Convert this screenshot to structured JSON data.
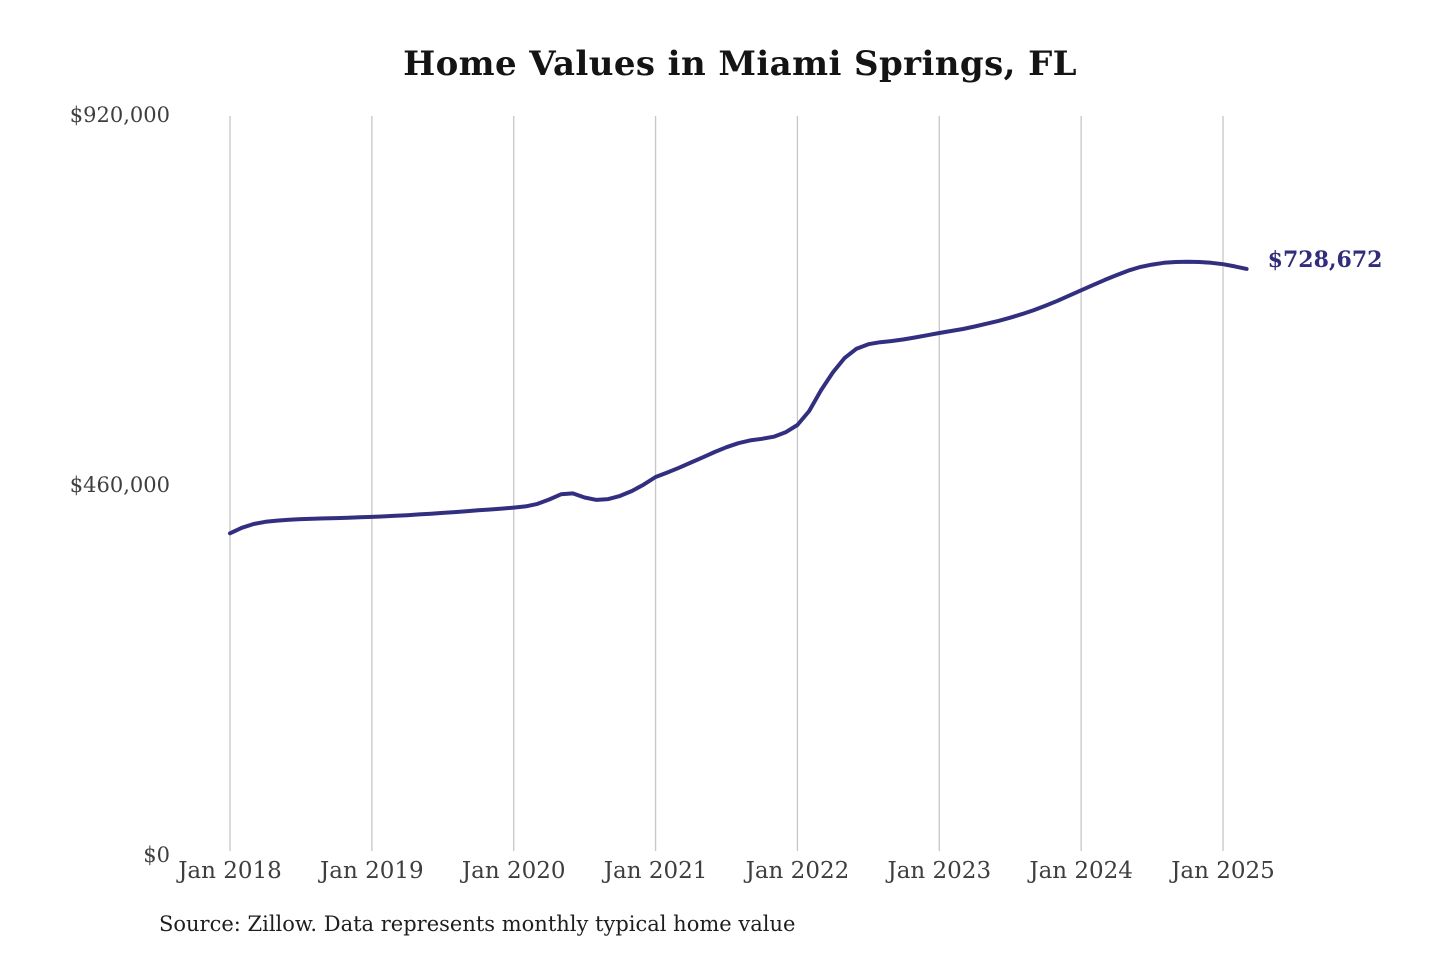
{
  "header": {
    "title": "Home Values in Miami Springs, FL"
  },
  "footer": {
    "source": "Source: Zillow. Data represents monthly typical home value"
  },
  "colors": {
    "line": "#332f80",
    "end_label": "#312d7a",
    "gridline": "#c7c7c7",
    "tick_text": "#3e3e3e"
  },
  "chart_data": {
    "type": "line",
    "title": "Home Values in Miami Springs, FL",
    "xlabel": "",
    "ylabel": "",
    "ylim": [
      0,
      920000
    ],
    "grid": "vertical-only",
    "legend": "none",
    "line_color": "#332f80",
    "end_label": "$728,672",
    "end_value": 728672,
    "y_ticks": [
      {
        "label": "$0",
        "value": 0
      },
      {
        "label": "$460,000",
        "value": 460000
      },
      {
        "label": "$920,000",
        "value": 920000
      }
    ],
    "x_tick_labels": [
      "Jan 2018",
      "Jan 2019",
      "Jan 2020",
      "Jan 2021",
      "Jan 2022",
      "Jan 2023",
      "Jan 2024",
      "Jan 2025"
    ],
    "months": [
      "2018-01",
      "2018-02",
      "2018-03",
      "2018-04",
      "2018-05",
      "2018-06",
      "2018-07",
      "2018-08",
      "2018-09",
      "2018-10",
      "2018-11",
      "2018-12",
      "2019-01",
      "2019-02",
      "2019-03",
      "2019-04",
      "2019-05",
      "2019-06",
      "2019-07",
      "2019-08",
      "2019-09",
      "2019-10",
      "2019-11",
      "2019-12",
      "2020-01",
      "2020-02",
      "2020-03",
      "2020-04",
      "2020-05",
      "2020-06",
      "2020-07",
      "2020-08",
      "2020-09",
      "2020-10",
      "2020-11",
      "2020-12",
      "2021-01",
      "2021-02",
      "2021-03",
      "2021-04",
      "2021-05",
      "2021-06",
      "2021-07",
      "2021-08",
      "2021-09",
      "2021-10",
      "2021-11",
      "2021-12",
      "2022-01",
      "2022-02",
      "2022-03",
      "2022-04",
      "2022-05",
      "2022-06",
      "2022-07",
      "2022-08",
      "2022-09",
      "2022-10",
      "2022-11",
      "2022-12",
      "2023-01",
      "2023-02",
      "2023-03",
      "2023-04",
      "2023-05",
      "2023-06",
      "2023-07",
      "2023-08",
      "2023-09",
      "2023-10",
      "2023-11",
      "2023-12",
      "2024-01",
      "2024-02",
      "2024-03",
      "2024-04",
      "2024-05",
      "2024-06",
      "2024-07",
      "2024-08",
      "2024-09",
      "2024-10",
      "2024-11",
      "2024-12",
      "2025-01",
      "2025-02",
      "2025-03"
    ],
    "values": [
      400000,
      406800,
      411500,
      414200,
      415800,
      416900,
      417600,
      418100,
      418500,
      418900,
      419400,
      419900,
      420400,
      421000,
      421700,
      422500,
      423400,
      424300,
      425300,
      426300,
      427400,
      428500,
      429600,
      430700,
      431900,
      433400,
      436500,
      442000,
      448500,
      449600,
      444500,
      441500,
      442500,
      446500,
      452500,
      460500,
      470000,
      475500,
      481500,
      488000,
      494500,
      501000,
      507000,
      512000,
      515500,
      517500,
      520000,
      525500,
      534600,
      552000,
      578000,
      600000,
      618000,
      629500,
      635000,
      637500,
      639000,
      641000,
      643500,
      646200,
      649000,
      651500,
      654000,
      657000,
      660500,
      664000,
      668000,
      672500,
      677500,
      683000,
      689000,
      695500,
      702000,
      708500,
      715000,
      721000,
      726500,
      731000,
      734000,
      736200,
      737300,
      737500,
      737200,
      736300,
      734500,
      731800,
      728672
    ]
  }
}
